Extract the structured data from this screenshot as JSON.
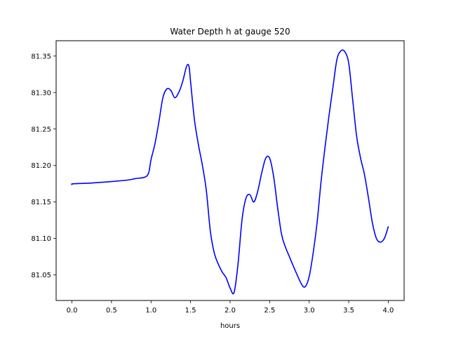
{
  "chart_data": {
    "type": "line",
    "title": "Water Depth h at gauge 520",
    "xlabel": "hours",
    "ylabel": "",
    "xlim": [
      -0.2,
      4.2
    ],
    "ylim": [
      81.015,
      81.371
    ],
    "grid": false,
    "x_ticks": [
      0.0,
      0.5,
      1.0,
      1.5,
      2.0,
      2.5,
      3.0,
      3.5,
      4.0
    ],
    "x_tick_labels": [
      "0.0",
      "0.5",
      "1.0",
      "1.5",
      "2.0",
      "2.5",
      "3.0",
      "3.5",
      "4.0"
    ],
    "y_ticks": [
      81.05,
      81.1,
      81.15,
      81.2,
      81.25,
      81.3,
      81.35
    ],
    "y_tick_labels": [
      "81.05",
      "81.10",
      "81.15",
      "81.20",
      "81.25",
      "81.30",
      "81.35"
    ],
    "series": [
      {
        "color": "#0000ff",
        "x": [
          0.0,
          0.02,
          0.25,
          0.5,
          0.7,
          0.8,
          0.92,
          0.97,
          1.0,
          1.05,
          1.1,
          1.15,
          1.2,
          1.25,
          1.3,
          1.35,
          1.4,
          1.45,
          1.48,
          1.5,
          1.55,
          1.6,
          1.65,
          1.7,
          1.75,
          1.8,
          1.85,
          1.9,
          1.95,
          2.0,
          2.05,
          2.1,
          2.15,
          2.2,
          2.25,
          2.3,
          2.35,
          2.4,
          2.45,
          2.5,
          2.55,
          2.6,
          2.65,
          2.7,
          2.75,
          2.8,
          2.9,
          2.95,
          3.0,
          3.05,
          3.1,
          3.15,
          3.2,
          3.25,
          3.3,
          3.35,
          3.4,
          3.45,
          3.5,
          3.55,
          3.6,
          3.65,
          3.7,
          3.75,
          3.8,
          3.85,
          3.9,
          3.95,
          4.0
        ],
        "y": [
          81.174,
          81.175,
          81.176,
          81.178,
          81.18,
          81.182,
          81.184,
          81.19,
          81.208,
          81.23,
          81.26,
          81.293,
          81.305,
          81.303,
          81.293,
          81.3,
          81.315,
          81.336,
          81.336,
          81.315,
          81.262,
          81.228,
          81.2,
          81.165,
          81.11,
          81.08,
          81.065,
          81.054,
          81.046,
          81.032,
          81.026,
          81.065,
          81.125,
          81.155,
          81.16,
          81.15,
          81.165,
          81.19,
          81.21,
          81.21,
          81.185,
          81.143,
          81.106,
          81.088,
          81.075,
          81.062,
          81.038,
          81.034,
          81.048,
          81.08,
          81.122,
          81.178,
          81.225,
          81.268,
          81.307,
          81.345,
          81.357,
          81.356,
          81.34,
          81.29,
          81.24,
          81.21,
          81.187,
          81.155,
          81.121,
          81.1,
          81.095,
          81.1,
          81.116
        ]
      }
    ]
  }
}
